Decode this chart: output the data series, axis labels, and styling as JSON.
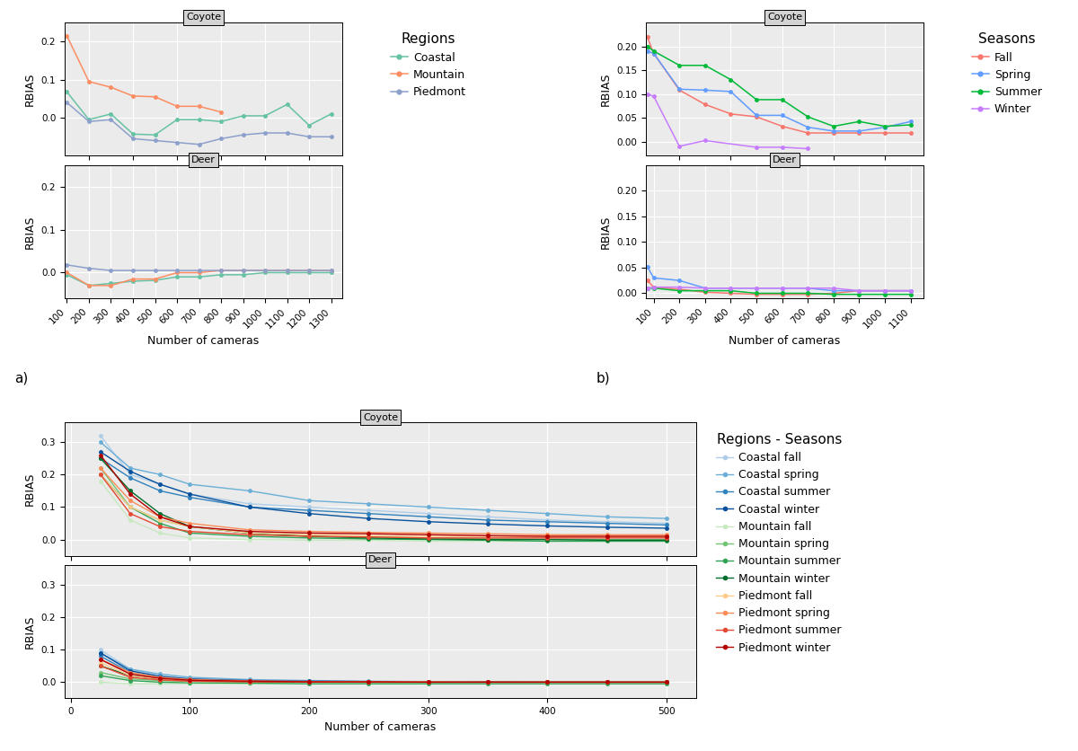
{
  "panel_a": {
    "xlabel": "Number of cameras",
    "ylabel": "RBIAS",
    "legend_title": "Regions",
    "coyote": {
      "title": "Coyote",
      "coastal_x": [
        100,
        200,
        300,
        400,
        500,
        600,
        700,
        800,
        900,
        1000,
        1100,
        1200,
        1300
      ],
      "coastal_y": [
        0.068,
        -0.005,
        0.01,
        -0.043,
        -0.045,
        -0.005,
        -0.005,
        -0.01,
        0.005,
        0.005,
        0.035,
        -0.02,
        0.01
      ],
      "mountain_x": [
        100,
        200,
        300,
        400,
        500,
        600,
        700,
        800
      ],
      "mountain_y": [
        0.215,
        0.095,
        0.08,
        0.057,
        0.055,
        0.03,
        0.03,
        0.015
      ],
      "piedmont_x": [
        100,
        200,
        300,
        400,
        500,
        600,
        700,
        800,
        900,
        1000,
        1100,
        1200,
        1300
      ],
      "piedmont_y": [
        0.04,
        -0.01,
        -0.005,
        -0.055,
        -0.06,
        -0.065,
        -0.07,
        -0.055,
        -0.045,
        -0.04,
        -0.04,
        -0.05,
        -0.05
      ]
    },
    "deer": {
      "title": "Deer",
      "coastal_x": [
        100,
        200,
        300,
        400,
        500,
        600,
        700,
        800,
        900,
        1000,
        1100,
        1200,
        1300
      ],
      "coastal_y": [
        -0.005,
        -0.03,
        -0.025,
        -0.02,
        -0.018,
        -0.01,
        -0.01,
        -0.005,
        -0.005,
        0.0,
        0.0,
        0.0,
        0.0
      ],
      "mountain_x": [
        100,
        200,
        300,
        400,
        500,
        600,
        700,
        800,
        900,
        1000,
        1100,
        1200,
        1300
      ],
      "mountain_y": [
        0.0,
        -0.03,
        -0.03,
        -0.015,
        -0.015,
        0.0,
        0.0,
        0.005,
        0.005,
        0.005,
        0.005,
        0.005,
        0.005
      ],
      "piedmont_x": [
        100,
        200,
        300,
        400,
        500,
        600,
        700,
        800,
        900,
        1000,
        1100,
        1200,
        1300
      ],
      "piedmont_y": [
        0.018,
        0.01,
        0.005,
        0.005,
        0.005,
        0.005,
        0.005,
        0.005,
        0.005,
        0.005,
        0.005,
        0.005,
        0.005
      ]
    },
    "xlim": [
      90,
      1350
    ],
    "coyote_ylim": [
      -0.1,
      0.25
    ],
    "deer_ylim": [
      -0.06,
      0.25
    ],
    "coyote_yticks": [
      0.0,
      0.1,
      0.2
    ],
    "deer_yticks": [
      0.0,
      0.1,
      0.2
    ],
    "xticks": [
      100,
      200,
      300,
      400,
      500,
      600,
      700,
      800,
      900,
      1000,
      1100,
      1200,
      1300
    ],
    "colors": {
      "coastal": "#66C2A5",
      "mountain": "#FC8D62",
      "piedmont": "#8DA0CB"
    }
  },
  "panel_b": {
    "xlabel": "Number of cameras",
    "ylabel": "RBIAS",
    "legend_title": "Seasons",
    "coyote": {
      "title": "Coyote",
      "fall_x": [
        75,
        100,
        200,
        300,
        400,
        500,
        600,
        700,
        800,
        900,
        1000,
        1100
      ],
      "fall_y": [
        0.22,
        0.185,
        0.108,
        0.078,
        0.058,
        0.052,
        0.032,
        0.018,
        0.018,
        0.018,
        0.018,
        0.018
      ],
      "spring_x": [
        75,
        100,
        200,
        300,
        400,
        500,
        600,
        700,
        800,
        900,
        1000,
        1100
      ],
      "spring_y": [
        0.19,
        0.185,
        0.11,
        0.108,
        0.105,
        0.055,
        0.055,
        0.03,
        0.022,
        0.022,
        0.03,
        0.042
      ],
      "summer_x": [
        75,
        100,
        200,
        300,
        400,
        500,
        600,
        700,
        800,
        900,
        1000,
        1100
      ],
      "summer_y": [
        0.2,
        0.19,
        0.16,
        0.16,
        0.13,
        0.088,
        0.088,
        0.052,
        0.032,
        0.042,
        0.032,
        0.035
      ],
      "winter_x": [
        75,
        100,
        200,
        300,
        500,
        600,
        700
      ],
      "winter_y": [
        0.1,
        0.095,
        -0.01,
        0.002,
        -0.012,
        -0.012,
        -0.015
      ]
    },
    "deer": {
      "title": "Deer",
      "fall_x": [
        75,
        100,
        200,
        300,
        400,
        500,
        600,
        700,
        800,
        900,
        1000,
        1100
      ],
      "fall_y": [
        0.025,
        0.012,
        0.008,
        0.002,
        0.0,
        -0.002,
        -0.002,
        -0.002,
        0.0,
        0.005,
        0.005,
        0.005
      ],
      "spring_x": [
        75,
        100,
        200,
        300,
        400,
        500,
        600,
        700,
        800,
        900,
        1000,
        1100
      ],
      "spring_y": [
        0.052,
        0.03,
        0.025,
        0.01,
        0.01,
        0.01,
        0.01,
        0.01,
        0.005,
        0.005,
        0.005,
        0.005
      ],
      "summer_x": [
        75,
        100,
        200,
        300,
        400,
        500,
        600,
        700,
        800,
        900,
        1000,
        1100
      ],
      "summer_y": [
        0.01,
        0.01,
        0.005,
        0.005,
        0.005,
        0.0,
        0.0,
        0.0,
        -0.002,
        -0.002,
        -0.002,
        -0.002
      ],
      "winter_x": [
        75,
        100,
        200,
        300,
        400,
        500,
        600,
        700,
        800,
        900,
        1000,
        1100
      ],
      "winter_y": [
        0.01,
        0.012,
        0.012,
        0.01,
        0.01,
        0.01,
        0.01,
        0.01,
        0.01,
        0.005,
        0.005,
        0.005
      ]
    },
    "xlim": [
      70,
      1150
    ],
    "coyote_ylim": [
      -0.03,
      0.25
    ],
    "deer_ylim": [
      -0.01,
      0.25
    ],
    "coyote_yticks": [
      0.0,
      0.05,
      0.1,
      0.15,
      0.2
    ],
    "deer_yticks": [
      0.0,
      0.05,
      0.1,
      0.15,
      0.2
    ],
    "xticks": [
      100,
      200,
      300,
      400,
      500,
      600,
      700,
      800,
      900,
      1000,
      1100
    ],
    "colors": {
      "fall": "#F8766D",
      "spring": "#619CFF",
      "summer": "#00BA38",
      "winter": "#C77CFF"
    }
  },
  "panel_c": {
    "xlabel": "Number of cameras",
    "ylabel": "RBIAS",
    "legend_title": "Regions - Seasons",
    "coyote": {
      "title": "Coyote",
      "coastal_fall_x": [
        25,
        50,
        75,
        100,
        150,
        200,
        250,
        300,
        350,
        400,
        450,
        500
      ],
      "coastal_fall_y": [
        0.32,
        0.2,
        0.17,
        0.14,
        0.11,
        0.1,
        0.09,
        0.08,
        0.07,
        0.06,
        0.055,
        0.05
      ],
      "coastal_spring_x": [
        25,
        50,
        75,
        100,
        150,
        200,
        250,
        300,
        350,
        400,
        450,
        500
      ],
      "coastal_spring_y": [
        0.3,
        0.22,
        0.2,
        0.17,
        0.15,
        0.12,
        0.11,
        0.1,
        0.09,
        0.08,
        0.07,
        0.065
      ],
      "coastal_summer_x": [
        25,
        50,
        75,
        100,
        150,
        200,
        250,
        300,
        350,
        400,
        450,
        500
      ],
      "coastal_summer_y": [
        0.25,
        0.19,
        0.15,
        0.13,
        0.1,
        0.09,
        0.08,
        0.07,
        0.06,
        0.055,
        0.05,
        0.045
      ],
      "coastal_winter_x": [
        25,
        50,
        75,
        100,
        150,
        200,
        250,
        300,
        350,
        400,
        450,
        500
      ],
      "coastal_winter_y": [
        0.27,
        0.21,
        0.17,
        0.14,
        0.1,
        0.08,
        0.065,
        0.055,
        0.048,
        0.042,
        0.038,
        0.035
      ],
      "mountain_fall_x": [
        25,
        50,
        75,
        100,
        150,
        200,
        250,
        300,
        350,
        400,
        450,
        500
      ],
      "mountain_fall_y": [
        0.18,
        0.06,
        0.02,
        0.005,
        0.0,
        -0.002,
        -0.002,
        -0.005,
        -0.005,
        -0.005,
        -0.005,
        -0.005
      ],
      "mountain_spring_x": [
        25,
        50,
        75,
        100,
        150,
        200,
        250,
        300,
        350,
        400,
        450,
        500
      ],
      "mountain_spring_y": [
        0.22,
        0.1,
        0.06,
        0.04,
        0.02,
        0.01,
        0.008,
        0.005,
        0.002,
        0.001,
        0.0,
        0.0
      ],
      "mountain_summer_x": [
        25,
        50,
        75,
        100,
        150,
        200,
        250,
        300,
        350,
        400,
        450,
        500
      ],
      "mountain_summer_y": [
        0.2,
        0.1,
        0.05,
        0.02,
        0.01,
        0.005,
        0.002,
        0.0,
        -0.002,
        -0.005,
        -0.005,
        -0.005
      ],
      "mountain_winter_x": [
        25,
        50,
        75,
        100,
        150,
        200,
        250,
        300,
        350,
        400,
        450,
        500
      ],
      "mountain_winter_y": [
        0.25,
        0.15,
        0.08,
        0.04,
        0.02,
        0.01,
        0.005,
        0.002,
        0.0,
        0.0,
        -0.002,
        -0.002
      ],
      "piedmont_fall_x": [
        25,
        50,
        75,
        100,
        150,
        200,
        250,
        300,
        350,
        400,
        450,
        500
      ],
      "piedmont_fall_y": [
        0.2,
        0.1,
        0.06,
        0.04,
        0.02,
        0.015,
        0.012,
        0.01,
        0.01,
        0.01,
        0.01,
        0.01
      ],
      "piedmont_spring_x": [
        25,
        50,
        75,
        100,
        150,
        200,
        250,
        300,
        350,
        400,
        450,
        500
      ],
      "piedmont_spring_y": [
        0.22,
        0.12,
        0.07,
        0.05,
        0.03,
        0.025,
        0.022,
        0.02,
        0.018,
        0.015,
        0.015,
        0.015
      ],
      "piedmont_summer_x": [
        25,
        50,
        75,
        100,
        150,
        200,
        250,
        300,
        350,
        400,
        450,
        500
      ],
      "piedmont_summer_y": [
        0.2,
        0.08,
        0.04,
        0.025,
        0.015,
        0.01,
        0.008,
        0.005,
        0.005,
        0.005,
        0.005,
        0.005
      ],
      "piedmont_winter_x": [
        25,
        50,
        75,
        100,
        150,
        200,
        250,
        300,
        350,
        400,
        450,
        500
      ],
      "piedmont_winter_y": [
        0.26,
        0.14,
        0.07,
        0.04,
        0.025,
        0.02,
        0.018,
        0.015,
        0.012,
        0.01,
        0.01,
        0.01
      ]
    },
    "deer": {
      "title": "Deer",
      "coastal_fall_x": [
        25,
        50,
        75,
        100,
        150,
        200,
        250,
        300,
        350,
        400,
        450,
        500
      ],
      "coastal_fall_y": [
        0.1,
        0.04,
        0.02,
        0.01,
        0.005,
        0.002,
        0.001,
        0.001,
        0.001,
        0.001,
        0.001,
        0.001
      ],
      "coastal_spring_x": [
        25,
        50,
        75,
        100,
        150,
        200,
        250,
        300,
        350,
        400,
        450,
        500
      ],
      "coastal_spring_y": [
        0.09,
        0.04,
        0.025,
        0.015,
        0.008,
        0.005,
        0.003,
        0.002,
        0.002,
        0.002,
        0.002,
        0.002
      ],
      "coastal_summer_x": [
        25,
        50,
        75,
        100,
        150,
        200,
        250,
        300,
        350,
        400,
        450,
        500
      ],
      "coastal_summer_y": [
        0.08,
        0.03,
        0.015,
        0.008,
        0.003,
        0.001,
        0.0,
        0.0,
        0.0,
        0.0,
        0.0,
        0.0
      ],
      "coastal_winter_x": [
        25,
        50,
        75,
        100,
        150,
        200,
        250,
        300,
        350,
        400,
        450,
        500
      ],
      "coastal_winter_y": [
        0.09,
        0.035,
        0.018,
        0.01,
        0.005,
        0.003,
        0.002,
        0.001,
        0.001,
        0.001,
        0.001,
        0.001
      ],
      "mountain_fall_x": [
        25,
        50,
        75,
        100,
        150,
        200,
        250,
        300,
        350,
        400,
        450,
        500
      ],
      "mountain_fall_y": [
        0.0,
        -0.005,
        -0.005,
        -0.005,
        -0.005,
        -0.005,
        -0.003,
        -0.002,
        -0.001,
        0.0,
        0.0,
        0.0
      ],
      "mountain_spring_x": [
        25,
        50,
        75,
        100,
        150,
        200,
        250,
        300,
        350,
        400,
        450,
        500
      ],
      "mountain_spring_y": [
        0.03,
        0.01,
        0.005,
        0.003,
        0.001,
        0.001,
        0.0,
        0.0,
        0.0,
        0.0,
        0.0,
        0.0
      ],
      "mountain_summer_x": [
        25,
        50,
        75,
        100,
        150,
        200,
        250,
        300,
        350,
        400,
        450,
        500
      ],
      "mountain_summer_y": [
        0.02,
        0.005,
        0.0,
        -0.002,
        -0.003,
        -0.005,
        -0.005,
        -0.005,
        -0.005,
        -0.005,
        -0.005,
        -0.005
      ],
      "mountain_winter_x": [
        25,
        50,
        75,
        100,
        150,
        200,
        250,
        300,
        350,
        400,
        450,
        500
      ],
      "mountain_winter_y": [
        0.05,
        0.02,
        0.01,
        0.005,
        0.002,
        0.001,
        0.0,
        0.0,
        0.0,
        0.0,
        0.0,
        0.0
      ],
      "piedmont_fall_x": [
        25,
        50,
        75,
        100,
        150,
        200,
        250,
        300,
        350,
        400,
        450,
        500
      ],
      "piedmont_fall_y": [
        0.06,
        0.02,
        0.01,
        0.005,
        0.002,
        0.001,
        0.0,
        0.0,
        0.0,
        0.0,
        0.0,
        0.0
      ],
      "piedmont_spring_x": [
        25,
        50,
        75,
        100,
        150,
        200,
        250,
        300,
        350,
        400,
        450,
        500
      ],
      "piedmont_spring_y": [
        0.07,
        0.03,
        0.015,
        0.008,
        0.004,
        0.002,
        0.001,
        0.001,
        0.0,
        0.0,
        0.0,
        0.0
      ],
      "piedmont_summer_x": [
        25,
        50,
        75,
        100,
        150,
        200,
        250,
        300,
        350,
        400,
        450,
        500
      ],
      "piedmont_summer_y": [
        0.05,
        0.015,
        0.007,
        0.003,
        0.001,
        0.0,
        0.0,
        0.0,
        0.0,
        0.0,
        0.0,
        0.0
      ],
      "piedmont_winter_x": [
        25,
        50,
        75,
        100,
        150,
        200,
        250,
        300,
        350,
        400,
        450,
        500
      ],
      "piedmont_winter_y": [
        0.07,
        0.025,
        0.012,
        0.006,
        0.003,
        0.001,
        0.001,
        0.0,
        0.0,
        0.0,
        0.0,
        0.0
      ]
    },
    "xlim": [
      -5,
      525
    ],
    "coyote_ylim": [
      -0.05,
      0.36
    ],
    "deer_ylim": [
      -0.05,
      0.36
    ],
    "coyote_yticks": [
      0.0,
      0.1,
      0.2,
      0.3
    ],
    "deer_yticks": [
      0.0,
      0.1,
      0.2,
      0.3
    ],
    "xticks": [
      0,
      100,
      200,
      300,
      400,
      500
    ],
    "colors": {
      "coastal_fall": "#AECDE8",
      "coastal_spring": "#6BAED6",
      "coastal_summer": "#3182BD",
      "coastal_winter": "#08519C",
      "mountain_fall": "#C7E9C0",
      "mountain_spring": "#74C476",
      "mountain_summer": "#31A354",
      "mountain_winter": "#006D2C",
      "piedmont_fall": "#FDCC8A",
      "piedmont_spring": "#FC8D59",
      "piedmont_summer": "#E34A33",
      "piedmont_winter": "#B30000"
    },
    "legend_labels": [
      "Coastal fall",
      "Coastal spring",
      "Coastal summer",
      "Coastal winter",
      "Mountain fall",
      "Mountain spring",
      "Mountain summer",
      "Mountain winter",
      "Piedmont fall",
      "Piedmont spring",
      "Piedmont summer",
      "Piedmont winter"
    ]
  },
  "panel_bg": "#EBEBEB",
  "strip_bg": "#D3D3D3",
  "grid_color": "#FFFFFF",
  "strip_fontsize": 8,
  "legend_fontsize": 9,
  "legend_title_fontsize": 11,
  "tick_fontsize": 7.5,
  "axis_label_fontsize": 9,
  "label_fontsize": 11
}
